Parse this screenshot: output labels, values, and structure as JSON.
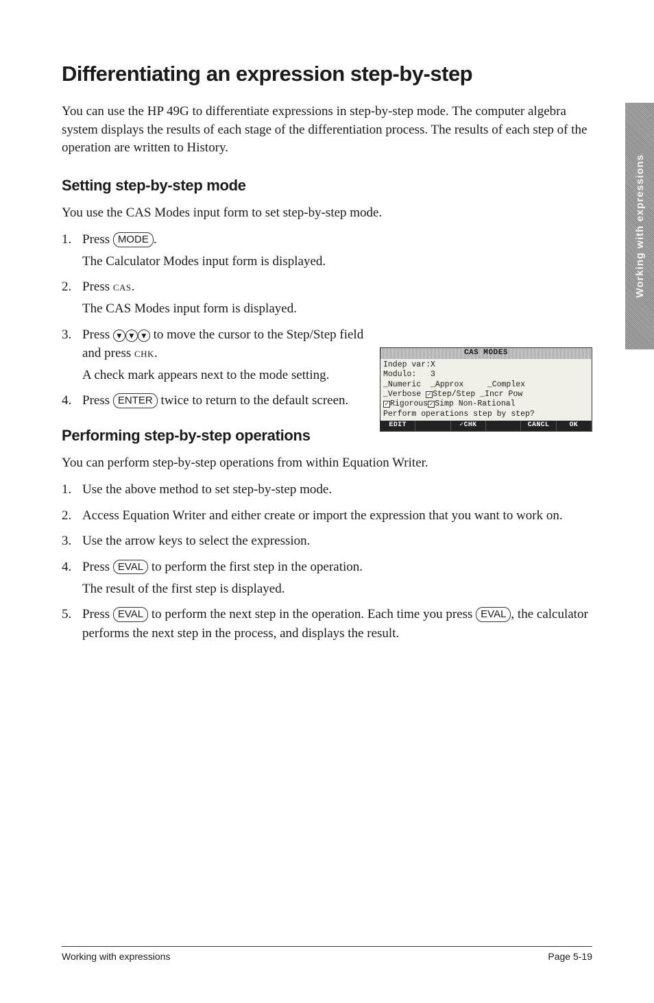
{
  "side_tab": "Working with expressions",
  "h1": "Differentiating an expression step-by-step",
  "intro": "You can use the HP 49G to differentiate expressions in step-by-step mode. The computer algebra system displays the results of each stage of the differentiation process. The results of each step of the operation are written to History.",
  "setting": {
    "heading": "Setting step-by-step mode",
    "lead": "You use the CAS Modes input form to set step-by-step mode.",
    "steps": {
      "s1a": "Press ",
      "s1key": "MODE",
      "s1b": ".",
      "s1sub": "The Calculator Modes input form is displayed.",
      "s2a": "Press ",
      "s2cas": "cas",
      "s2b": ".",
      "s2sub": "The CAS Modes input form is displayed.",
      "s3a": "Press ",
      "s3b": " to move the cursor to the Step/Step field and press ",
      "s3chk": "chk",
      "s3c": ".",
      "s3sub": "A check mark appears next to the mode setting.",
      "s4a": "Press ",
      "s4key": "ENTER",
      "s4b": " twice to return to the default screen."
    }
  },
  "calc": {
    "title": "CAS MODES",
    "l1": "Indep var:X",
    "l2": "Modulo:   3",
    "l3a": "_Numeric  _Approx     _Complex",
    "l4a": "_Verbose ",
    "l4b": "Step/Step _Incr Pow",
    "l5a": "Rigorous",
    "l5b": "Simp Non-Rational",
    "l6": "Perform operations step by step?",
    "btns": [
      "EDIT",
      "",
      "✓CHK",
      "",
      "CANCL",
      "OK"
    ]
  },
  "perform": {
    "heading": "Performing step-by-step operations",
    "lead": "You can perform step-by-step operations from within Equation Writer.",
    "steps": {
      "s1": "Use the above method to set step-by-step mode.",
      "s2": "Access Equation Writer and either create or import the expression that you want to work on.",
      "s3": "Use the arrow keys to select the expression.",
      "s4a": "Press ",
      "s4key": "EVAL",
      "s4b": " to perform the first step in the operation.",
      "s4sub": "The result of the first step is displayed.",
      "s5a": "Press ",
      "s5key1": "EVAL",
      "s5b": " to perform the next step in the operation. Each time you press ",
      "s5key2": "EVAL",
      "s5c": ", the calculator performs the next step in the process, and displays the result."
    }
  },
  "footer": {
    "left": "Working with expressions",
    "right": "Page 5-19"
  }
}
